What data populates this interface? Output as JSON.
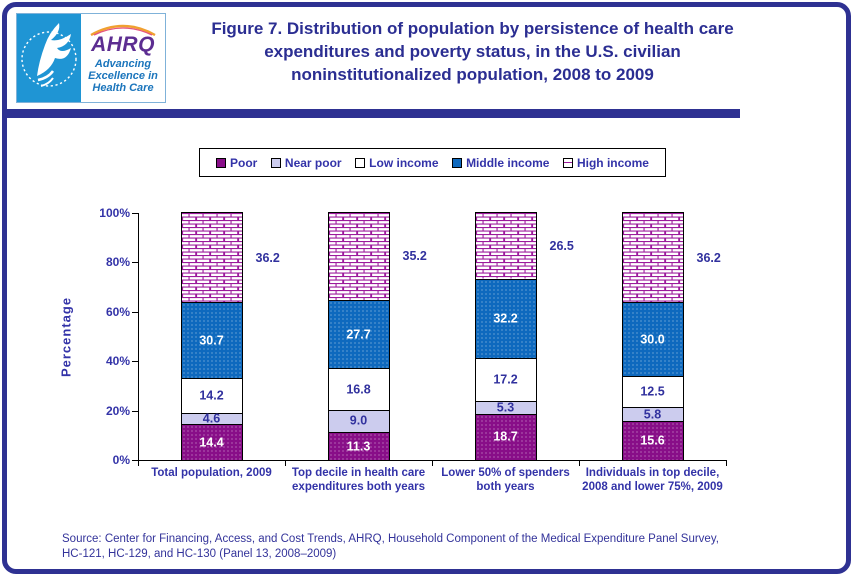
{
  "header": {
    "logo": {
      "hhs_seal": "hhs-eagle",
      "org_abbr": "AHRQ",
      "tagline_line1": "Advancing",
      "tagline_line2": "Excellence in",
      "tagline_line3": "Health Care"
    },
    "title_lines": [
      "Figure 7. Distribution of population by persistence of health care",
      "expenditures and poverty status, in the U.S. civilian",
      "noninstitutionalized population, 2008 to 2009"
    ]
  },
  "legend": {
    "items": [
      {
        "label": "Poor",
        "color": "#880E88"
      },
      {
        "label": "Near poor",
        "color": "#CCCCEE"
      },
      {
        "label": "Low income",
        "color": "#FFFFFF"
      },
      {
        "label": "Middle income",
        "color": "#0E69BE"
      },
      {
        "label": "High income",
        "color": "brick"
      }
    ]
  },
  "chart_data": {
    "type": "bar",
    "stacked": true,
    "title": "Figure 7. Distribution of population by persistence of health care expenditures and poverty status, in the U.S. civilian noninstitutionalized population, 2008 to 2009",
    "ylabel": "Percentage",
    "xlabel": "",
    "ylim": [
      0,
      100
    ],
    "y_ticks": [
      "0%",
      "20%",
      "40%",
      "60%",
      "80%",
      "100%"
    ],
    "grid": false,
    "legend_position": "top",
    "categories": [
      "Total population, 2009",
      "Top decile in health care expenditures both years",
      "Lower 50% of spenders both years",
      "Individuals in top decile, 2008 and lower 75%, 2009"
    ],
    "categories_lines": [
      [
        "Total population, 2009"
      ],
      [
        "Top decile in health care",
        "expenditures both years"
      ],
      [
        "Lower 50% of spenders",
        "both years"
      ],
      [
        "Individuals in top decile,",
        "2008 and lower 75%, 2009"
      ]
    ],
    "series": [
      {
        "name": "Poor",
        "values": [
          14.4,
          11.3,
          18.7,
          15.6
        ],
        "color": "#880E88",
        "label_color": "#FFFFFF",
        "texture": "dots"
      },
      {
        "name": "Near poor",
        "values": [
          4.6,
          9.0,
          5.3,
          5.8
        ],
        "color": "#CCCCEE",
        "label_color": "#31319E"
      },
      {
        "name": "Low income",
        "values": [
          14.2,
          16.8,
          17.2,
          12.5
        ],
        "color": "#FFFFFF",
        "label_color": "#31319E"
      },
      {
        "name": "Middle income",
        "values": [
          30.7,
          27.7,
          32.2,
          30.0
        ],
        "color": "#0E69BE",
        "label_color": "#FFFFFF",
        "texture": "dots"
      },
      {
        "name": "High income",
        "values": [
          36.2,
          35.2,
          26.5,
          36.2
        ],
        "color": "brick",
        "label_color": "#31319E",
        "label_outside": true
      }
    ]
  },
  "colors": {
    "accent": "#2E3192",
    "text_blue": "#3333A8",
    "value_blue": "#31319E",
    "brick_line": "#9C1A9C",
    "logo_panel_blue": "#1F95D4",
    "logo_purple": "#5C2D91",
    "logo_tagline_blue": "#1B75BC"
  },
  "source": {
    "line1": "Source: Center for Financing, Access, and Cost Trends, AHRQ, Household Component of the Medical Expenditure Panel Survey,",
    "line2": "HC-121, HC-129, and HC-130 (Panel 13, 2008–2009)"
  }
}
